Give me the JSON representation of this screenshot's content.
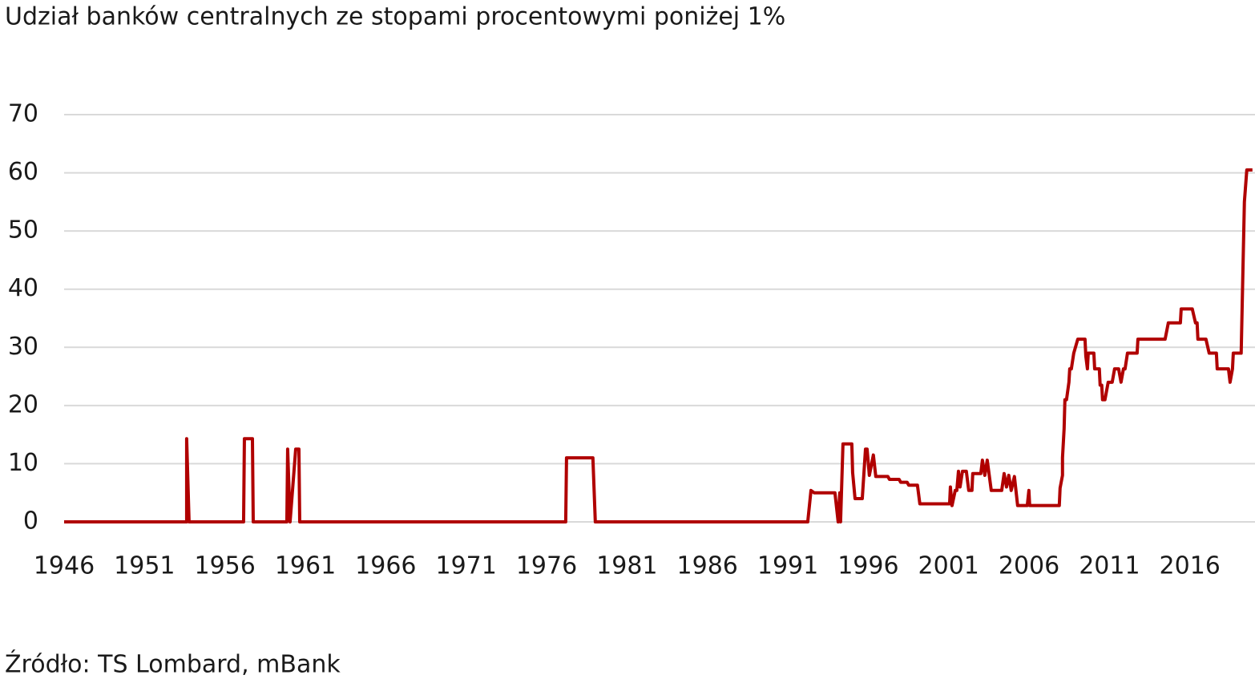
{
  "chart_data": {
    "type": "line",
    "title": "Udział banków centralnych ze stopami procentowymi poniżej 1%",
    "source": "Źródło: TS Lombard, mBank",
    "xlim": [
      1946,
      2020
    ],
    "xticks": [
      1946,
      1951,
      1956,
      1961,
      1966,
      1971,
      1976,
      1981,
      1986,
      1991,
      1996,
      2001,
      2006,
      2011,
      2016
    ],
    "ylim": [
      0,
      70
    ],
    "yticks": [
      0,
      10,
      20,
      30,
      40,
      50,
      60,
      70
    ],
    "grid": true,
    "color": "#b00000",
    "x": [
      1946,
      1953.62,
      1953.62,
      1953.77,
      1957.16,
      1957.21,
      1957.71,
      1957.76,
      1959.85,
      1959.9,
      1960.05,
      1960.4,
      1960.6,
      1960.65,
      1977.19,
      1977.24,
      1978.88,
      1979.03,
      1992.24,
      1992.44,
      1992.64,
      1993.93,
      1994.13,
      1994.23,
      1994.28,
      1994.43,
      1994.98,
      1995.03,
      1995.18,
      1995.63,
      1995.83,
      1995.93,
      1996.07,
      1996.32,
      1996.47,
      1997.22,
      1997.32,
      1997.92,
      1998.02,
      1998.42,
      1998.52,
      1999.06,
      1999.21,
      2001.06,
      2001.11,
      2001.21,
      2001.41,
      2001.51,
      2001.61,
      2001.71,
      2001.86,
      2002.1,
      2002.25,
      2002.45,
      2002.5,
      2003.0,
      2003.1,
      2003.25,
      2003.4,
      2003.65,
      2004.3,
      2004.45,
      2004.6,
      2004.74,
      2004.89,
      2005.09,
      2005.29,
      2005.89,
      2005.99,
      2006.04,
      2007.88,
      2007.93,
      2008.08,
      2008.08,
      2008.18,
      2008.23,
      2008.33,
      2008.48,
      2008.53,
      2008.63,
      2008.78,
      2009.03,
      2009.48,
      2009.53,
      2009.63,
      2009.68,
      2010.03,
      2010.08,
      2010.37,
      2010.42,
      2010.52,
      2010.57,
      2010.72,
      2010.92,
      2011.17,
      2011.32,
      2011.57,
      2011.72,
      2011.87,
      2011.97,
      2012.12,
      2012.72,
      2012.77,
      2014.46,
      2014.66,
      2015.41,
      2015.46,
      2016.15,
      2016.35,
      2016.45,
      2016.5,
      2017.0,
      2017.2,
      2017.65,
      2017.7,
      2018.4,
      2018.5,
      2018.65,
      2018.7,
      2019.19,
      2019.39,
      2019.54,
      2019.89
    ],
    "values": [
      0,
      0,
      14.3,
      0,
      0,
      14.3,
      14.3,
      0,
      0,
      12.5,
      0,
      12.5,
      12.5,
      0,
      0,
      11.0,
      11.0,
      0,
      0,
      5.4,
      5.0,
      5.0,
      0,
      5.0,
      0,
      13.4,
      13.4,
      8.5,
      4.0,
      4.0,
      12.5,
      12.5,
      8.0,
      11.5,
      7.8,
      7.8,
      7.3,
      7.3,
      6.8,
      6.8,
      6.3,
      6.3,
      3.1,
      3.1,
      6.0,
      2.8,
      5.4,
      5.4,
      8.7,
      6.0,
      8.7,
      8.7,
      5.4,
      5.4,
      8.3,
      8.3,
      10.6,
      8.0,
      10.6,
      5.4,
      5.4,
      8.3,
      6.0,
      8.0,
      5.4,
      7.8,
      2.8,
      2.8,
      5.4,
      2.8,
      2.8,
      5.8,
      8.0,
      11.0,
      16.0,
      21.0,
      21.0,
      24.0,
      26.3,
      26.3,
      29.0,
      31.4,
      31.4,
      28.5,
      26.3,
      29.0,
      29.0,
      26.3,
      26.3,
      23.5,
      23.5,
      21.0,
      21.0,
      24.0,
      24.0,
      26.3,
      26.3,
      24.0,
      26.3,
      26.3,
      29.0,
      29.0,
      31.4,
      31.4,
      34.2,
      34.2,
      36.6,
      36.6,
      34.2,
      34.2,
      31.4,
      31.4,
      29.0,
      29.0,
      26.3,
      26.3,
      24.0,
      26.3,
      29.0,
      29.0,
      55.0,
      60.5,
      60.5
    ]
  }
}
